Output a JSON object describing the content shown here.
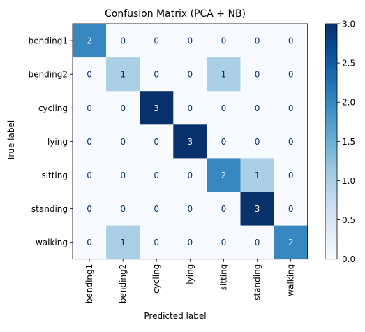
{
  "chart_data": {
    "type": "heatmap",
    "title": "Confusion Matrix (PCA + NB)",
    "xlabel": "Predicted label",
    "ylabel": "True label",
    "x_categories": [
      "bending1",
      "bending2",
      "cycling",
      "lying",
      "sitting",
      "standing",
      "walking"
    ],
    "y_categories": [
      "bending1",
      "bending2",
      "cycling",
      "lying",
      "sitting",
      "standing",
      "walking"
    ],
    "values": [
      [
        2,
        0,
        0,
        0,
        0,
        0,
        0
      ],
      [
        0,
        1,
        0,
        0,
        1,
        0,
        0
      ],
      [
        0,
        0,
        3,
        0,
        0,
        0,
        0
      ],
      [
        0,
        0,
        0,
        3,
        0,
        0,
        0
      ],
      [
        0,
        0,
        0,
        0,
        2,
        1,
        0
      ],
      [
        0,
        0,
        0,
        0,
        0,
        3,
        0
      ],
      [
        0,
        1,
        0,
        0,
        0,
        0,
        2
      ]
    ],
    "colormap": "Blues",
    "colorbar": {
      "range": [
        0.0,
        3.0
      ],
      "ticks": [
        "0.0",
        "0.5",
        "1.0",
        "1.5",
        "2.0",
        "2.5",
        "3.0"
      ]
    },
    "grid": false
  }
}
